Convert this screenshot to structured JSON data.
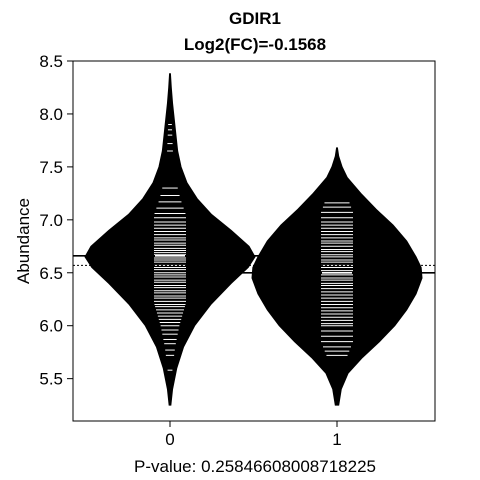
{
  "chart_data": {
    "type": "beanplot",
    "title": "GDIR1",
    "subtitle": "Log2(FC)=-0.1568",
    "xlabel": "P-value: 0.25846608008718225",
    "ylabel": "Abundance",
    "ylim": [
      5.1,
      8.5
    ],
    "yticks": [
      "5.5",
      "6.0",
      "6.5",
      "7.0",
      "7.5",
      "8.0",
      "8.5"
    ],
    "ytick_values": [
      5.5,
      6.0,
      6.5,
      7.0,
      7.5,
      8.0,
      8.5
    ],
    "categories": [
      "0",
      "1"
    ],
    "overall_mean": 6.57,
    "groups": [
      {
        "name": "0",
        "mean": 6.66,
        "density": [
          [
            5.25,
            0.01
          ],
          [
            5.4,
            0.03
          ],
          [
            5.6,
            0.08
          ],
          [
            5.8,
            0.16
          ],
          [
            6.0,
            0.29
          ],
          [
            6.2,
            0.48
          ],
          [
            6.4,
            0.72
          ],
          [
            6.55,
            0.92
          ],
          [
            6.65,
            1.0
          ],
          [
            6.75,
            0.93
          ],
          [
            6.9,
            0.72
          ],
          [
            7.05,
            0.49
          ],
          [
            7.2,
            0.32
          ],
          [
            7.35,
            0.2
          ],
          [
            7.5,
            0.13
          ],
          [
            7.65,
            0.09
          ],
          [
            7.8,
            0.07
          ],
          [
            7.95,
            0.05
          ],
          [
            8.1,
            0.03
          ],
          [
            8.25,
            0.015
          ],
          [
            8.38,
            0.005
          ]
        ],
        "points": [
          5.58,
          5.72,
          5.77,
          5.83,
          5.87,
          5.92,
          5.96,
          6.0,
          6.03,
          6.06,
          6.09,
          6.12,
          6.15,
          6.18,
          6.2,
          6.23,
          6.26,
          6.28,
          6.31,
          6.33,
          6.36,
          6.38,
          6.41,
          6.43,
          6.46,
          6.48,
          6.5,
          6.53,
          6.55,
          6.57,
          6.6,
          6.62,
          6.64,
          6.67,
          6.69,
          6.71,
          6.73,
          6.76,
          6.78,
          6.81,
          6.83,
          6.86,
          6.89,
          6.92,
          6.95,
          6.98,
          7.02,
          7.06,
          7.11,
          7.17,
          7.23,
          7.3,
          7.65,
          7.72,
          7.8,
          7.85,
          7.9
        ]
      },
      {
        "name": "1",
        "mean": 6.5,
        "density": [
          [
            5.25,
            0.02
          ],
          [
            5.4,
            0.05
          ],
          [
            5.55,
            0.13
          ],
          [
            5.7,
            0.3
          ],
          [
            5.85,
            0.5
          ],
          [
            6.0,
            0.68
          ],
          [
            6.15,
            0.82
          ],
          [
            6.3,
            0.93
          ],
          [
            6.45,
            1.0
          ],
          [
            6.55,
            0.99
          ],
          [
            6.65,
            0.93
          ],
          [
            6.8,
            0.82
          ],
          [
            6.95,
            0.66
          ],
          [
            7.1,
            0.46
          ],
          [
            7.25,
            0.28
          ],
          [
            7.4,
            0.12
          ],
          [
            7.5,
            0.06
          ],
          [
            7.6,
            0.02
          ],
          [
            7.68,
            0.005
          ]
        ],
        "points": [
          5.72,
          5.76,
          5.8,
          5.85,
          5.9,
          5.95,
          6.0,
          6.02,
          6.05,
          6.08,
          6.11,
          6.14,
          6.17,
          6.2,
          6.23,
          6.26,
          6.29,
          6.32,
          6.35,
          6.38,
          6.4,
          6.43,
          6.45,
          6.48,
          6.5,
          6.52,
          6.55,
          6.57,
          6.6,
          6.62,
          6.65,
          6.67,
          6.7,
          6.72,
          6.75,
          6.78,
          6.8,
          6.83,
          6.86,
          6.89,
          6.92,
          6.95,
          6.98,
          7.02,
          7.07,
          7.12,
          7.16
        ]
      }
    ]
  }
}
